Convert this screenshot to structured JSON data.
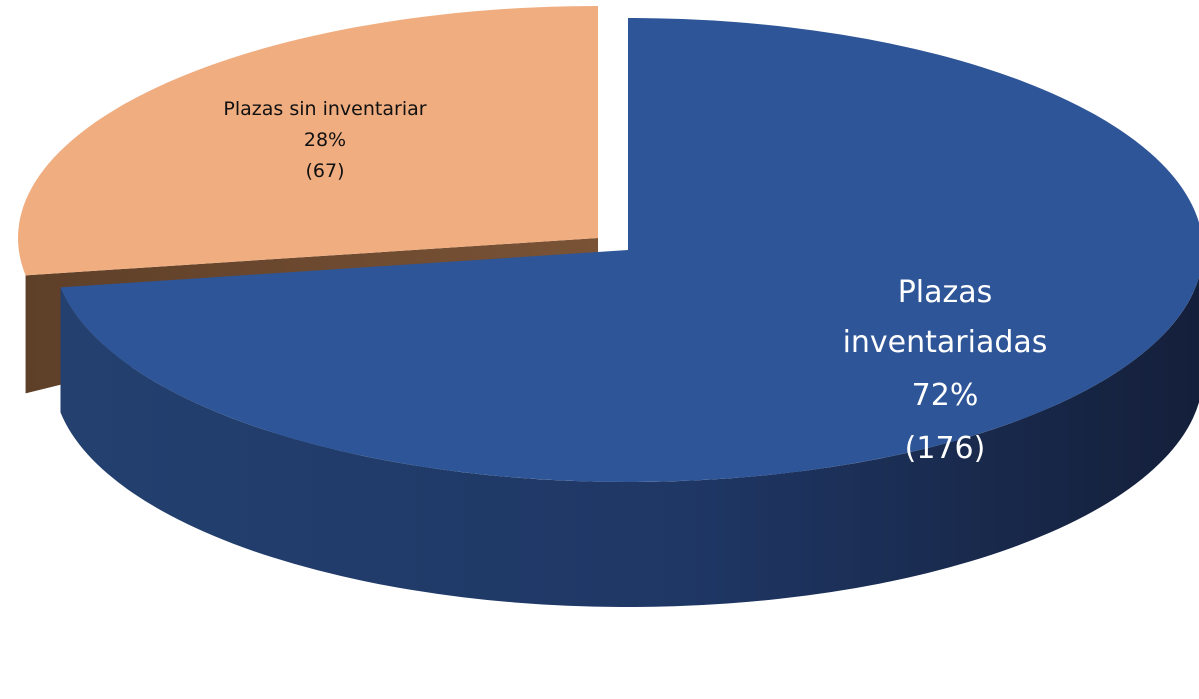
{
  "chart_data": {
    "type": "pie",
    "style": "3d exploded",
    "slices": [
      {
        "label": "Plazas inventariadas",
        "label_lines": [
          "Plazas",
          "inventariadas"
        ],
        "percent_label": "72%",
        "count_label": "(176)",
        "value": 176,
        "percent": 72,
        "color": "#2e5597",
        "side_color": "#1d2f55"
      },
      {
        "label": "Plazas sin inventariar",
        "label_lines": [
          "Plazas sin inventariar"
        ],
        "percent_label": "28%",
        "count_label": "(67)",
        "value": 67,
        "percent": 28,
        "color": "#f0ad80",
        "side_color": "#6d4a30"
      }
    ]
  }
}
